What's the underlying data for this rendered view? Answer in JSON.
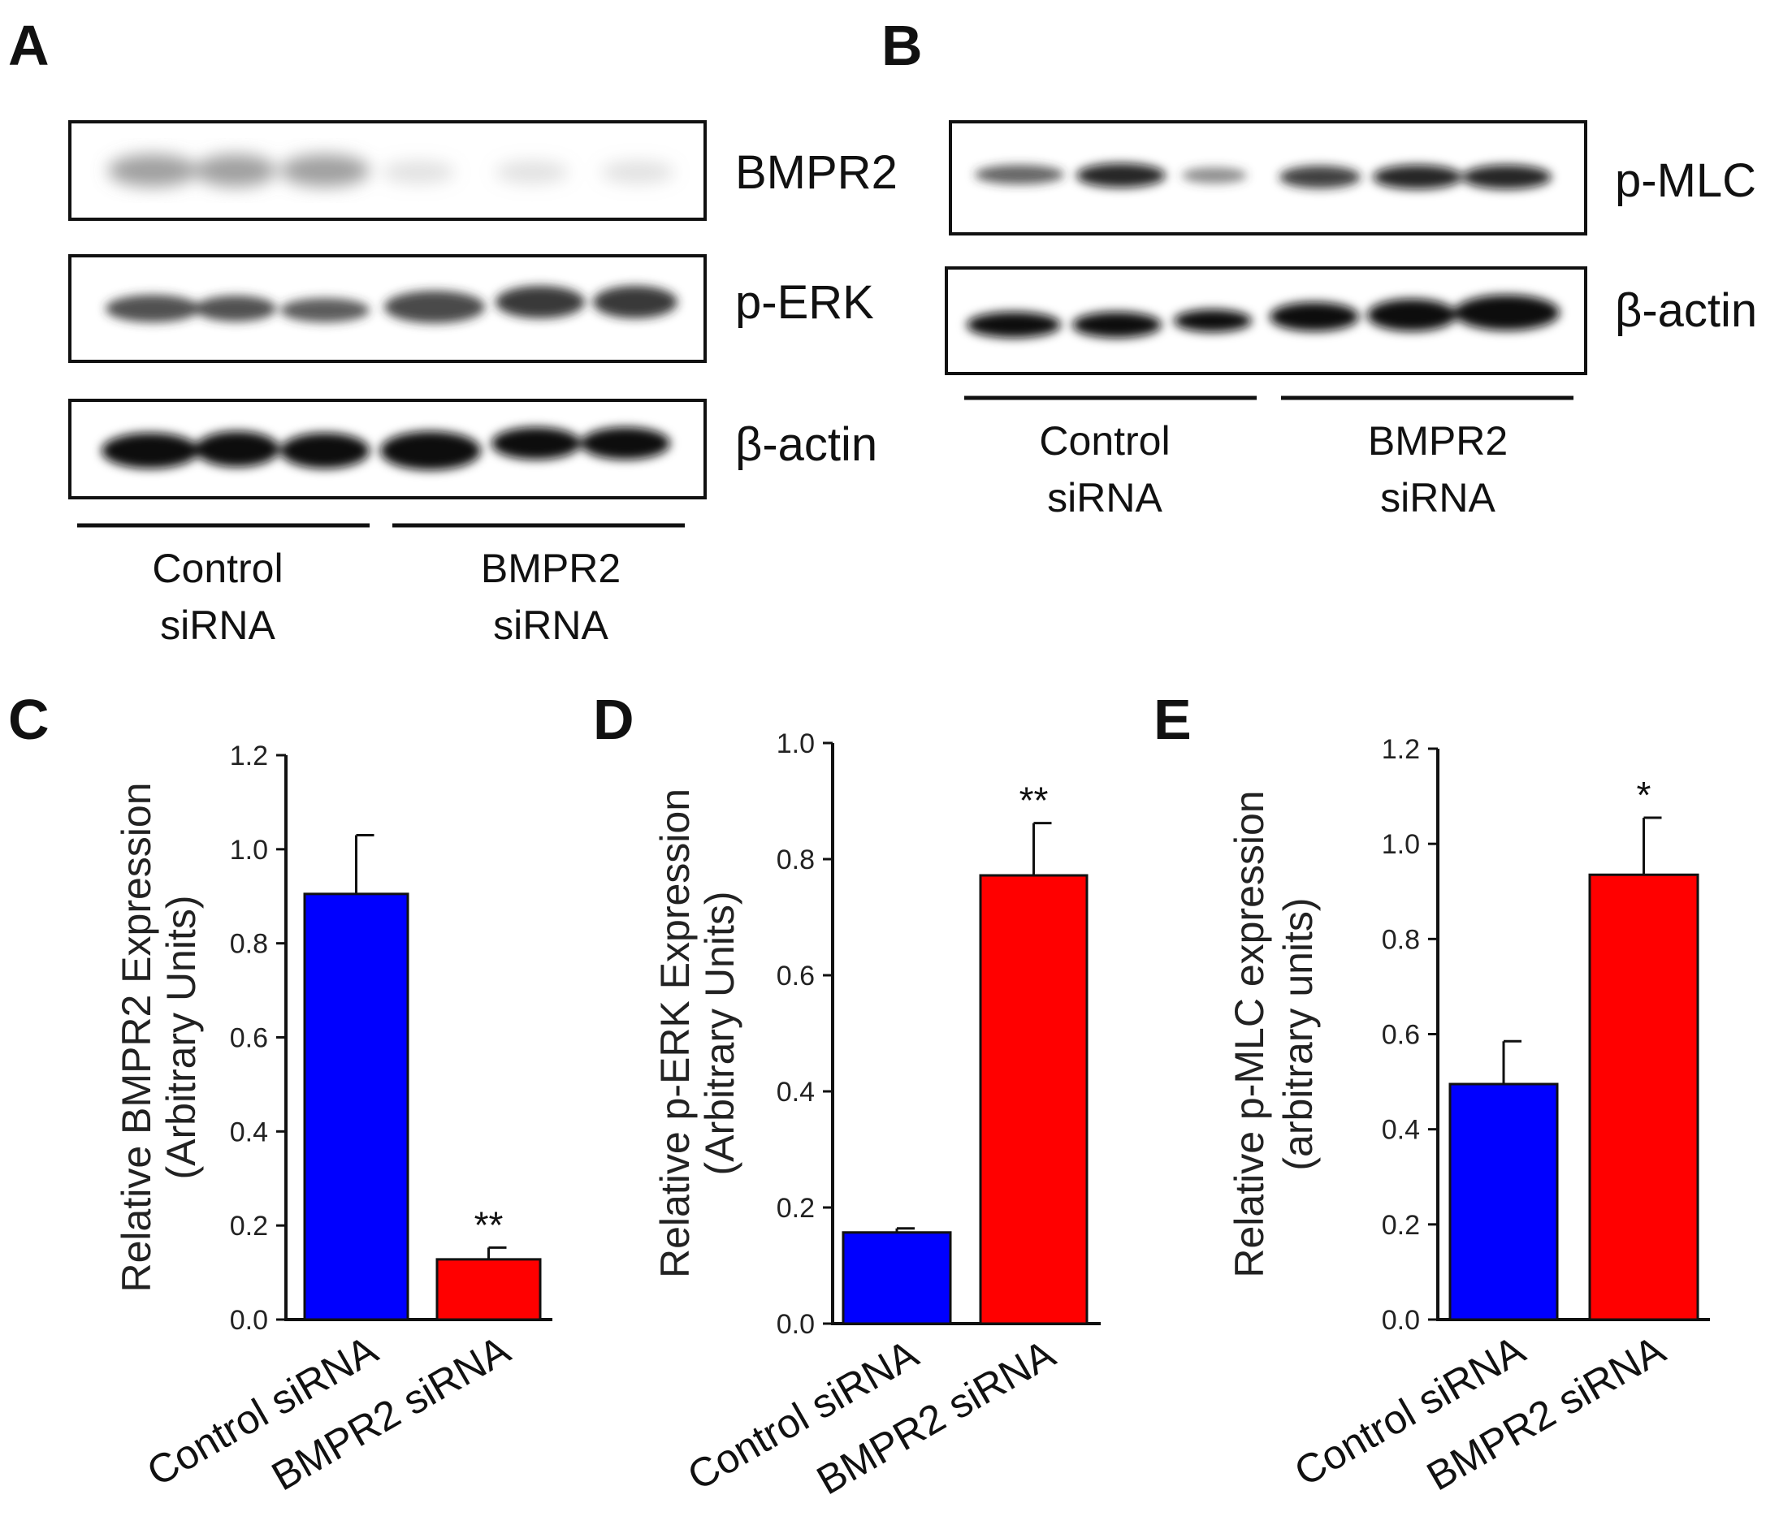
{
  "blots": {
    "A": {
      "letter": "A",
      "bands": [
        "BMPR2",
        "p-ERK",
        "β-actin"
      ],
      "groups": [
        {
          "line1": "Control",
          "line2": "siRNA"
        },
        {
          "line1": "BMPR2",
          "line2": "siRNA"
        }
      ]
    },
    "B": {
      "letter": "B",
      "bands": [
        "p-MLC",
        "β-actin"
      ],
      "groups": [
        {
          "line1": "Control",
          "line2": "siRNA"
        },
        {
          "line1": "BMPR2",
          "line2": "siRNA"
        }
      ]
    }
  },
  "chart_data": [
    {
      "panel": "C",
      "type": "bar",
      "ylabel_line1": "Relative BMPR2 Expression",
      "ylabel_line2": "(Arbitrary Units)",
      "categories": [
        "Control siRNA",
        "BMPR2 siRNA"
      ],
      "values": [
        0.905,
        0.128
      ],
      "errors": [
        0.125,
        0.025
      ],
      "colors": [
        "#0000ff",
        "#ff0000"
      ],
      "significance": [
        "",
        "**"
      ],
      "ylim": [
        0,
        1.2
      ],
      "yticks": [
        0.0,
        0.2,
        0.4,
        0.6,
        0.8,
        1.0,
        1.2
      ],
      "grid": false
    },
    {
      "panel": "D",
      "type": "bar",
      "ylabel_line1": "Relative p-ERK Expression",
      "ylabel_line2": "(Arbitrary Units)",
      "categories": [
        "Control siRNA",
        "BMPR2 siRNA"
      ],
      "values": [
        0.157,
        0.772
      ],
      "errors": [
        0.007,
        0.09
      ],
      "colors": [
        "#0000ff",
        "#ff0000"
      ],
      "significance": [
        "",
        "**"
      ],
      "ylim": [
        0,
        1.0
      ],
      "yticks": [
        0.0,
        0.2,
        0.4,
        0.6,
        0.8,
        1.0
      ],
      "grid": false
    },
    {
      "panel": "E",
      "type": "bar",
      "ylabel_line1": "Relative p-MLC expression",
      "ylabel_line2": "(arbitrary units)",
      "categories": [
        "Control siRNA",
        "BMPR2 siRNA"
      ],
      "values": [
        0.495,
        0.935
      ],
      "errors": [
        0.09,
        0.12
      ],
      "colors": [
        "#0000ff",
        "#ff0000"
      ],
      "significance": [
        "",
        "*"
      ],
      "ylim": [
        0,
        1.2
      ],
      "yticks": [
        0.0,
        0.2,
        0.4,
        0.6,
        0.8,
        1.0,
        1.2
      ],
      "grid": false
    }
  ]
}
